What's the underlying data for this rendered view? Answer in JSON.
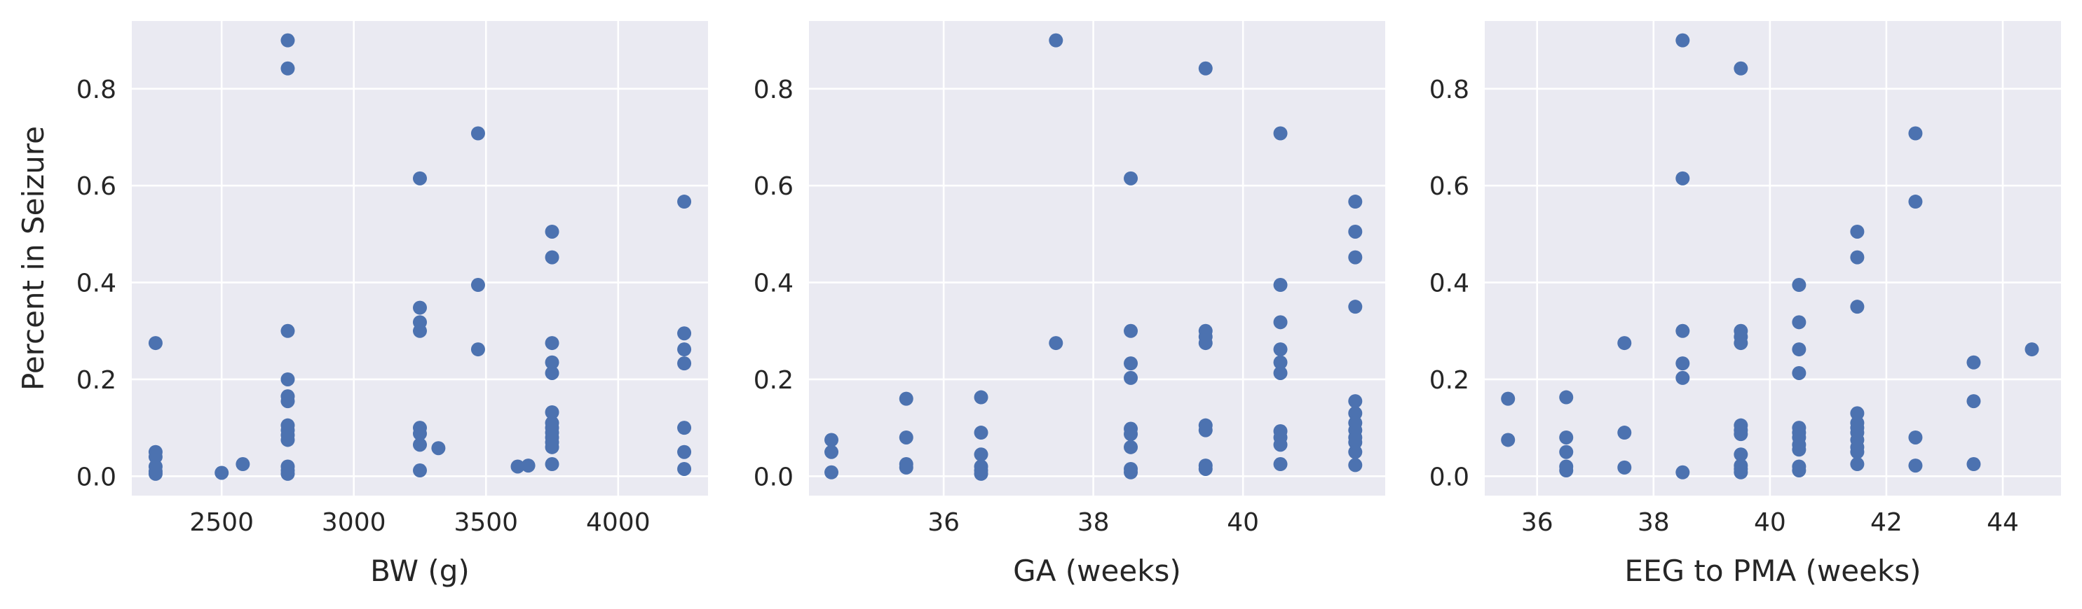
{
  "figure": {
    "background": "#ffffff",
    "axes_background": "#eaeaf2",
    "grid_color": "#ffffff",
    "marker_color": "#4c72b0"
  },
  "chart_data": [
    {
      "type": "scatter",
      "xlabel": "BW (g)",
      "ylabel": "Percent in Seizure",
      "xlim": [
        2160,
        4340
      ],
      "ylim": [
        -0.04,
        0.94
      ],
      "xticks": [
        2500,
        3000,
        3500,
        4000
      ],
      "xtick_labels": [
        "2500",
        "3000",
        "3500",
        "4000"
      ],
      "yticks": [
        0.0,
        0.2,
        0.4,
        0.6,
        0.8
      ],
      "ytick_labels": [
        "0.0",
        "0.2",
        "0.4",
        "0.6",
        "0.8"
      ],
      "grid": true,
      "points": [
        [
          2250,
          0.275
        ],
        [
          2250,
          0.05
        ],
        [
          2250,
          0.04
        ],
        [
          2250,
          0.02
        ],
        [
          2250,
          0.01
        ],
        [
          2250,
          0.005
        ],
        [
          2500,
          0.007
        ],
        [
          2580,
          0.025
        ],
        [
          2750,
          0.9
        ],
        [
          2750,
          0.842
        ],
        [
          2750,
          0.3
        ],
        [
          2750,
          0.2
        ],
        [
          2750,
          0.165
        ],
        [
          2750,
          0.155
        ],
        [
          2750,
          0.105
        ],
        [
          2750,
          0.095
        ],
        [
          2750,
          0.085
        ],
        [
          2750,
          0.075
        ],
        [
          2750,
          0.02
        ],
        [
          2750,
          0.012
        ],
        [
          2750,
          0.005
        ],
        [
          3250,
          0.615
        ],
        [
          3250,
          0.348
        ],
        [
          3250,
          0.318
        ],
        [
          3250,
          0.3
        ],
        [
          3250,
          0.1
        ],
        [
          3250,
          0.088
        ],
        [
          3250,
          0.065
        ],
        [
          3250,
          0.012
        ],
        [
          3320,
          0.058
        ],
        [
          3470,
          0.708
        ],
        [
          3470,
          0.395
        ],
        [
          3470,
          0.262
        ],
        [
          3620,
          0.02
        ],
        [
          3660,
          0.022
        ],
        [
          3750,
          0.505
        ],
        [
          3750,
          0.452
        ],
        [
          3750,
          0.275
        ],
        [
          3750,
          0.235
        ],
        [
          3750,
          0.213
        ],
        [
          3750,
          0.132
        ],
        [
          3750,
          0.11
        ],
        [
          3750,
          0.1
        ],
        [
          3750,
          0.09
        ],
        [
          3750,
          0.08
        ],
        [
          3750,
          0.07
        ],
        [
          3750,
          0.06
        ],
        [
          3750,
          0.025
        ],
        [
          4250,
          0.567
        ],
        [
          4250,
          0.295
        ],
        [
          4250,
          0.262
        ],
        [
          4250,
          0.233
        ],
        [
          4250,
          0.1
        ],
        [
          4250,
          0.05
        ],
        [
          4250,
          0.015
        ]
      ]
    },
    {
      "type": "scatter",
      "xlabel": "GA (weeks)",
      "ylabel": "",
      "xlim": [
        34.2,
        41.9
      ],
      "ylim": [
        -0.04,
        0.94
      ],
      "xticks": [
        36,
        38,
        40
      ],
      "xtick_labels": [
        "36",
        "38",
        "40"
      ],
      "yticks": [
        0.0,
        0.2,
        0.4,
        0.6,
        0.8
      ],
      "ytick_labels": [
        "0.0",
        "0.2",
        "0.4",
        "0.6",
        "0.8"
      ],
      "grid": true,
      "points": [
        [
          34.5,
          0.075
        ],
        [
          34.5,
          0.05
        ],
        [
          34.5,
          0.008
        ],
        [
          35.5,
          0.16
        ],
        [
          35.5,
          0.08
        ],
        [
          35.5,
          0.025
        ],
        [
          35.5,
          0.018
        ],
        [
          36.5,
          0.163
        ],
        [
          36.5,
          0.09
        ],
        [
          36.5,
          0.045
        ],
        [
          36.5,
          0.02
        ],
        [
          36.5,
          0.012
        ],
        [
          36.5,
          0.005
        ],
        [
          37.5,
          0.9
        ],
        [
          37.5,
          0.275
        ],
        [
          38.5,
          0.615
        ],
        [
          38.5,
          0.3
        ],
        [
          38.5,
          0.233
        ],
        [
          38.5,
          0.203
        ],
        [
          38.5,
          0.098
        ],
        [
          38.5,
          0.087
        ],
        [
          38.5,
          0.06
        ],
        [
          38.5,
          0.015
        ],
        [
          38.5,
          0.008
        ],
        [
          39.5,
          0.842
        ],
        [
          39.5,
          0.3
        ],
        [
          39.5,
          0.288
        ],
        [
          39.5,
          0.275
        ],
        [
          39.5,
          0.105
        ],
        [
          39.5,
          0.095
        ],
        [
          39.5,
          0.022
        ],
        [
          39.5,
          0.015
        ],
        [
          40.5,
          0.708
        ],
        [
          40.5,
          0.395
        ],
        [
          40.5,
          0.318
        ],
        [
          40.5,
          0.262
        ],
        [
          40.5,
          0.235
        ],
        [
          40.5,
          0.213
        ],
        [
          40.5,
          0.093
        ],
        [
          40.5,
          0.08
        ],
        [
          40.5,
          0.065
        ],
        [
          40.5,
          0.025
        ],
        [
          41.5,
          0.567
        ],
        [
          41.5,
          0.505
        ],
        [
          41.5,
          0.452
        ],
        [
          41.5,
          0.35
        ],
        [
          41.5,
          0.155
        ],
        [
          41.5,
          0.13
        ],
        [
          41.5,
          0.11
        ],
        [
          41.5,
          0.095
        ],
        [
          41.5,
          0.08
        ],
        [
          41.5,
          0.07
        ],
        [
          41.5,
          0.05
        ],
        [
          41.5,
          0.023
        ]
      ]
    },
    {
      "type": "scatter",
      "xlabel": "EEG to PMA (weeks)",
      "ylabel": "",
      "xlim": [
        35.1,
        45.0
      ],
      "ylim": [
        -0.04,
        0.94
      ],
      "xticks": [
        36,
        38,
        40,
        42,
        44
      ],
      "xtick_labels": [
        "36",
        "38",
        "40",
        "42",
        "44"
      ],
      "yticks": [
        0.0,
        0.2,
        0.4,
        0.6,
        0.8
      ],
      "ytick_labels": [
        "0.0",
        "0.2",
        "0.4",
        "0.6",
        "0.8"
      ],
      "grid": true,
      "points": [
        [
          35.5,
          0.16
        ],
        [
          35.5,
          0.075
        ],
        [
          36.5,
          0.163
        ],
        [
          36.5,
          0.08
        ],
        [
          36.5,
          0.05
        ],
        [
          36.5,
          0.02
        ],
        [
          36.5,
          0.012
        ],
        [
          37.5,
          0.275
        ],
        [
          37.5,
          0.09
        ],
        [
          37.5,
          0.018
        ],
        [
          38.5,
          0.9
        ],
        [
          38.5,
          0.615
        ],
        [
          38.5,
          0.3
        ],
        [
          38.5,
          0.233
        ],
        [
          38.5,
          0.203
        ],
        [
          38.5,
          0.008
        ],
        [
          39.5,
          0.842
        ],
        [
          39.5,
          0.3
        ],
        [
          39.5,
          0.288
        ],
        [
          39.5,
          0.275
        ],
        [
          39.5,
          0.105
        ],
        [
          39.5,
          0.095
        ],
        [
          39.5,
          0.087
        ],
        [
          39.5,
          0.045
        ],
        [
          39.5,
          0.022
        ],
        [
          39.5,
          0.015
        ],
        [
          39.5,
          0.008
        ],
        [
          40.5,
          0.395
        ],
        [
          40.5,
          0.318
        ],
        [
          40.5,
          0.262
        ],
        [
          40.5,
          0.213
        ],
        [
          40.5,
          0.1
        ],
        [
          40.5,
          0.09
        ],
        [
          40.5,
          0.08
        ],
        [
          40.5,
          0.065
        ],
        [
          40.5,
          0.055
        ],
        [
          40.5,
          0.02
        ],
        [
          40.5,
          0.012
        ],
        [
          41.5,
          0.505
        ],
        [
          41.5,
          0.452
        ],
        [
          41.5,
          0.35
        ],
        [
          41.5,
          0.13
        ],
        [
          41.5,
          0.11
        ],
        [
          41.5,
          0.1
        ],
        [
          41.5,
          0.09
        ],
        [
          41.5,
          0.075
        ],
        [
          41.5,
          0.06
        ],
        [
          41.5,
          0.05
        ],
        [
          41.5,
          0.025
        ],
        [
          42.5,
          0.708
        ],
        [
          42.5,
          0.567
        ],
        [
          42.5,
          0.08
        ],
        [
          42.5,
          0.022
        ],
        [
          43.5,
          0.235
        ],
        [
          43.5,
          0.155
        ],
        [
          43.5,
          0.025
        ],
        [
          44.5,
          0.262
        ]
      ]
    }
  ]
}
